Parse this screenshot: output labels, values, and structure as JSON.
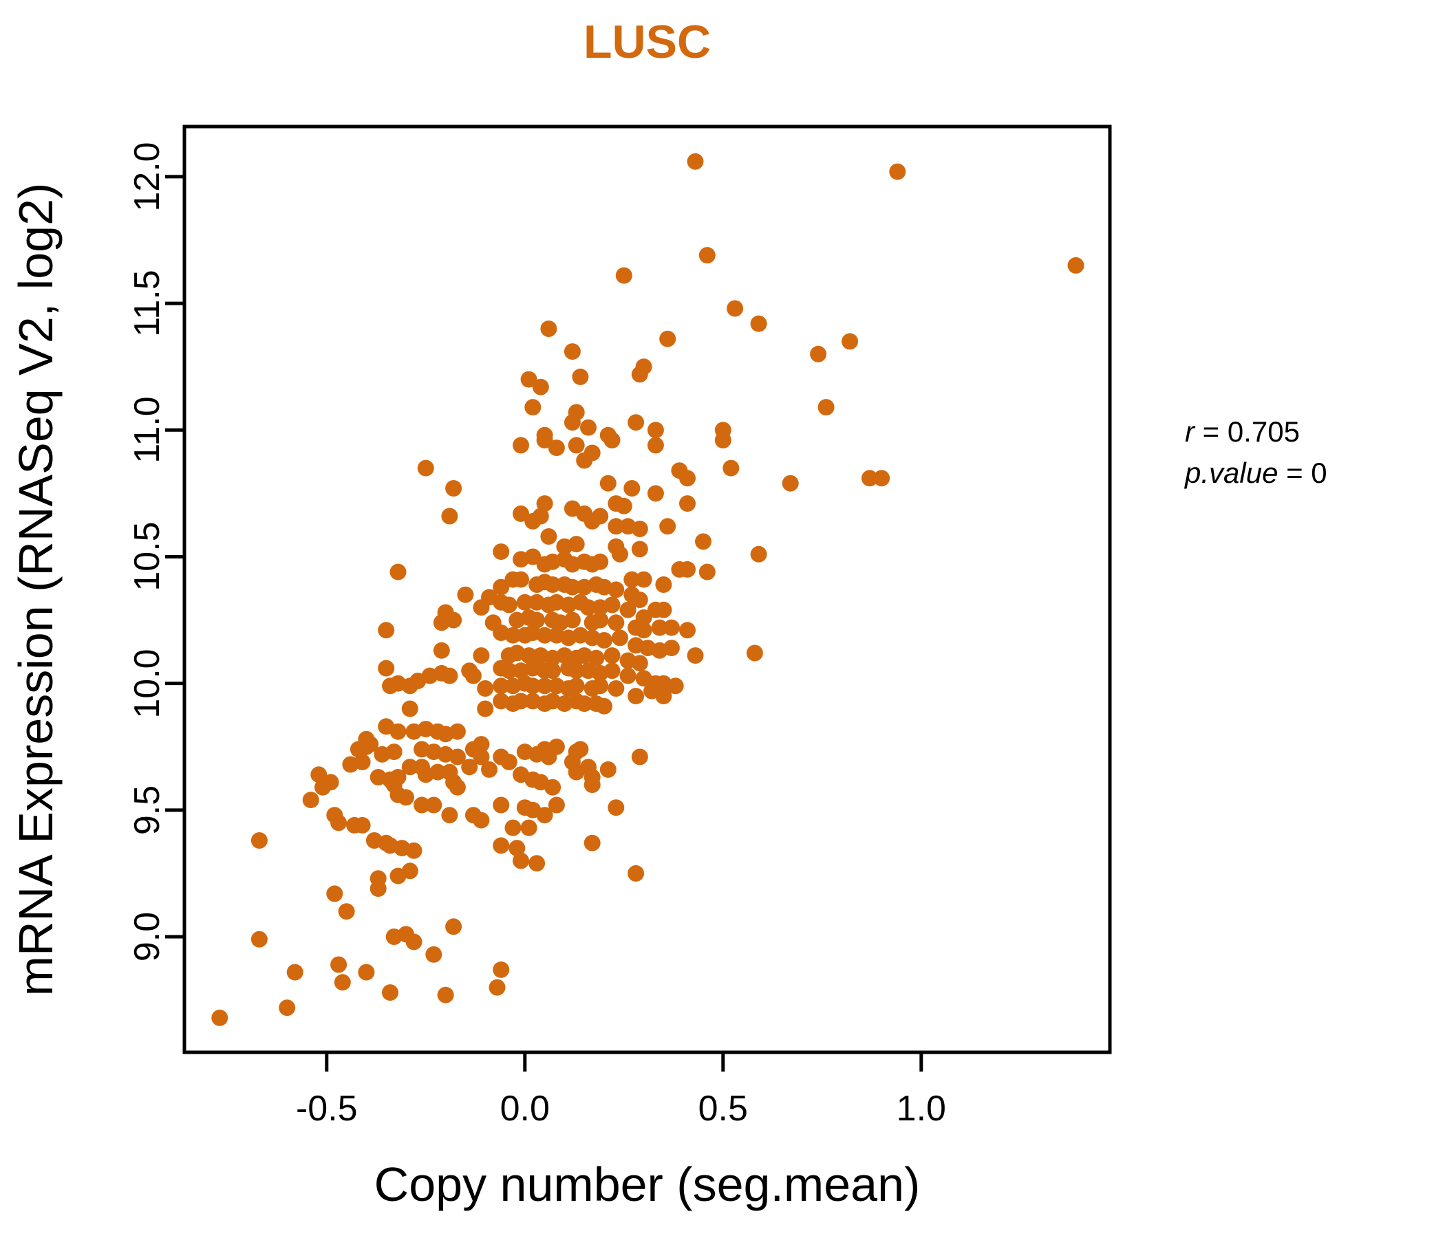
{
  "title": "LUSC",
  "annotation": {
    "line1_var": "r",
    "line1_rest": " = 0.705",
    "line2_var": "p.value",
    "line2_rest": " = 0"
  },
  "chart_data": {
    "type": "scatter",
    "title": "LUSC",
    "title_color": "#D2690E",
    "point_color": "#D2690E",
    "xlabel": "Copy number (seg.mean)",
    "ylabel": "mRNA Expression (RNASeq V2, log2)",
    "x_ticks": [
      "-0.5",
      "0.0",
      "0.5",
      "1.0"
    ],
    "y_ticks": [
      "9.0",
      "9.5",
      "10.0",
      "10.5",
      "11.0",
      "11.5",
      "12.0"
    ],
    "xlim": [
      -0.859,
      1.476
    ],
    "ylim": [
      8.544,
      12.198
    ],
    "legend": "none",
    "grid": false,
    "stats": {
      "r": 0.705,
      "p_value": 0
    },
    "points": [
      [
        0.43,
        12.06
      ],
      [
        0.94,
        12.02
      ],
      [
        0.46,
        11.69
      ],
      [
        1.39,
        11.65
      ],
      [
        0.25,
        11.61
      ],
      [
        0.53,
        11.48
      ],
      [
        0.59,
        11.42
      ],
      [
        0.06,
        11.4
      ],
      [
        0.36,
        11.36
      ],
      [
        0.82,
        11.35
      ],
      [
        0.74,
        11.3
      ],
      [
        0.12,
        11.31
      ],
      [
        0.3,
        11.25
      ],
      [
        0.29,
        11.22
      ],
      [
        0.14,
        11.21
      ],
      [
        0.01,
        11.2
      ],
      [
        0.04,
        11.17
      ],
      [
        0.76,
        11.09
      ],
      [
        0.02,
        11.09
      ],
      [
        0.13,
        11.07
      ],
      [
        0.12,
        11.03
      ],
      [
        0.28,
        11.03
      ],
      [
        0.16,
        11.01
      ],
      [
        0.33,
        11.0
      ],
      [
        0.5,
        11.0
      ],
      [
        0.21,
        10.98
      ],
      [
        0.05,
        10.98
      ],
      [
        -0.01,
        10.94
      ],
      [
        0.05,
        10.96
      ],
      [
        0.08,
        10.93
      ],
      [
        0.13,
        10.94
      ],
      [
        0.17,
        10.91
      ],
      [
        0.15,
        10.88
      ],
      [
        0.22,
        10.96
      ],
      [
        0.33,
        10.94
      ],
      [
        0.5,
        10.96
      ],
      [
        0.39,
        10.84
      ],
      [
        0.41,
        10.81
      ],
      [
        0.52,
        10.85
      ],
      [
        0.67,
        10.79
      ],
      [
        0.87,
        10.81
      ],
      [
        0.9,
        10.81
      ],
      [
        -0.25,
        10.85
      ],
      [
        -0.18,
        10.77
      ],
      [
        0.21,
        10.79
      ],
      [
        0.27,
        10.77
      ],
      [
        0.33,
        10.75
      ],
      [
        0.41,
        10.71
      ],
      [
        0.23,
        10.71
      ],
      [
        0.25,
        10.7
      ],
      [
        0.05,
        10.71
      ],
      [
        -0.19,
        10.66
      ],
      [
        -0.01,
        10.67
      ],
      [
        0.02,
        10.64
      ],
      [
        0.04,
        10.66
      ],
      [
        0.12,
        10.69
      ],
      [
        0.15,
        10.67
      ],
      [
        0.17,
        10.64
      ],
      [
        0.19,
        10.66
      ],
      [
        0.23,
        10.62
      ],
      [
        0.26,
        10.62
      ],
      [
        0.29,
        10.61
      ],
      [
        0.36,
        10.62
      ],
      [
        0.45,
        10.56
      ],
      [
        0.59,
        10.51
      ],
      [
        0.06,
        10.58
      ],
      [
        0.1,
        10.54
      ],
      [
        0.13,
        10.55
      ],
      [
        0.23,
        10.54
      ],
      [
        0.24,
        10.51
      ],
      [
        0.29,
        10.53
      ],
      [
        -0.06,
        10.52
      ],
      [
        -0.01,
        10.49
      ],
      [
        0.02,
        10.5
      ],
      [
        -0.32,
        10.44
      ],
      [
        0.05,
        10.47
      ],
      [
        0.07,
        10.48
      ],
      [
        0.1,
        10.49
      ],
      [
        0.12,
        10.47
      ],
      [
        0.15,
        10.48
      ],
      [
        0.17,
        10.47
      ],
      [
        0.19,
        10.48
      ],
      [
        0.39,
        10.45
      ],
      [
        0.41,
        10.45
      ],
      [
        0.46,
        10.44
      ],
      [
        0.27,
        10.41
      ],
      [
        0.3,
        10.41
      ],
      [
        0.35,
        10.39
      ],
      [
        -0.03,
        10.41
      ],
      [
        -0.01,
        10.41
      ],
      [
        -0.06,
        10.38
      ],
      [
        0.03,
        10.39
      ],
      [
        0.05,
        10.4
      ],
      [
        0.07,
        10.39
      ],
      [
        0.1,
        10.39
      ],
      [
        0.12,
        10.38
      ],
      [
        0.15,
        10.38
      ],
      [
        0.18,
        10.39
      ],
      [
        0.2,
        10.38
      ],
      [
        0.23,
        10.37
      ],
      [
        -0.15,
        10.35
      ],
      [
        -0.09,
        10.34
      ],
      [
        0.27,
        10.35
      ],
      [
        0.29,
        10.33
      ],
      [
        -0.11,
        10.3
      ],
      [
        -0.06,
        10.32
      ],
      [
        -0.04,
        10.31
      ],
      [
        0.0,
        10.32
      ],
      [
        0.03,
        10.32
      ],
      [
        0.06,
        10.31
      ],
      [
        0.08,
        10.32
      ],
      [
        0.11,
        10.31
      ],
      [
        0.14,
        10.32
      ],
      [
        0.16,
        10.3
      ],
      [
        0.19,
        10.3
      ],
      [
        0.22,
        10.31
      ],
      [
        0.26,
        10.29
      ],
      [
        0.33,
        10.29
      ],
      [
        0.35,
        10.29
      ],
      [
        0.3,
        10.26
      ],
      [
        -0.2,
        10.28
      ],
      [
        -0.18,
        10.25
      ],
      [
        -0.21,
        10.24
      ],
      [
        -0.08,
        10.24
      ],
      [
        -0.35,
        10.21
      ],
      [
        -0.02,
        10.25
      ],
      [
        0.01,
        10.26
      ],
      [
        0.03,
        10.25
      ],
      [
        0.07,
        10.25
      ],
      [
        0.09,
        10.24
      ],
      [
        0.12,
        10.25
      ],
      [
        0.17,
        10.24
      ],
      [
        0.19,
        10.25
      ],
      [
        0.23,
        10.24
      ],
      [
        0.28,
        10.22
      ],
      [
        0.3,
        10.21
      ],
      [
        0.34,
        10.22
      ],
      [
        0.37,
        10.22
      ],
      [
        0.41,
        10.21
      ],
      [
        -0.06,
        10.2
      ],
      [
        -0.03,
        10.19
      ],
      [
        0.0,
        10.19
      ],
      [
        0.02,
        10.2
      ],
      [
        0.05,
        10.19
      ],
      [
        0.08,
        10.19
      ],
      [
        0.11,
        10.18
      ],
      [
        0.14,
        10.19
      ],
      [
        0.17,
        10.18
      ],
      [
        0.2,
        10.17
      ],
      [
        0.24,
        10.18
      ],
      [
        -0.21,
        10.13
      ],
      [
        0.28,
        10.15
      ],
      [
        0.31,
        10.14
      ],
      [
        0.34,
        10.13
      ],
      [
        0.37,
        10.14
      ],
      [
        0.43,
        10.11
      ],
      [
        0.58,
        10.12
      ],
      [
        -0.11,
        10.11
      ],
      [
        -0.04,
        10.11
      ],
      [
        -0.02,
        10.12
      ],
      [
        0.01,
        10.11
      ],
      [
        0.04,
        10.11
      ],
      [
        0.07,
        10.1
      ],
      [
        0.1,
        10.11
      ],
      [
        0.13,
        10.1
      ],
      [
        0.15,
        10.11
      ],
      [
        0.18,
        10.1
      ],
      [
        0.22,
        10.11
      ],
      [
        0.26,
        10.09
      ],
      [
        0.29,
        10.08
      ],
      [
        -0.35,
        10.06
      ],
      [
        -0.24,
        10.03
      ],
      [
        -0.21,
        10.04
      ],
      [
        -0.19,
        10.03
      ],
      [
        -0.14,
        10.05
      ],
      [
        -0.13,
        10.03
      ],
      [
        -0.06,
        10.06
      ],
      [
        -0.04,
        10.05
      ],
      [
        -0.01,
        10.05
      ],
      [
        0.02,
        10.06
      ],
      [
        0.05,
        10.05
      ],
      [
        0.07,
        10.05
      ],
      [
        0.11,
        10.06
      ],
      [
        0.13,
        10.05
      ],
      [
        0.16,
        10.05
      ],
      [
        0.19,
        10.04
      ],
      [
        0.22,
        10.05
      ],
      [
        0.26,
        10.03
      ],
      [
        0.3,
        10.02
      ],
      [
        0.33,
        10.0
      ],
      [
        0.35,
        10.0
      ],
      [
        -0.32,
        10.0
      ],
      [
        -0.29,
        9.99
      ],
      [
        -0.27,
        10.01
      ],
      [
        0.38,
        9.99
      ],
      [
        -0.34,
        9.99
      ],
      [
        -0.1,
        9.98
      ],
      [
        -0.06,
        9.99
      ],
      [
        -0.03,
        9.99
      ],
      [
        0.0,
        10.0
      ],
      [
        0.02,
        9.99
      ],
      [
        0.05,
        9.99
      ],
      [
        0.08,
        9.99
      ],
      [
        0.11,
        9.98
      ],
      [
        0.13,
        9.99
      ],
      [
        0.17,
        9.98
      ],
      [
        0.19,
        9.99
      ],
      [
        0.23,
        9.98
      ],
      [
        0.28,
        9.95
      ],
      [
        0.32,
        9.97
      ],
      [
        0.35,
        9.95
      ],
      [
        -0.29,
        9.9
      ],
      [
        -0.1,
        9.9
      ],
      [
        -0.06,
        9.93
      ],
      [
        -0.03,
        9.92
      ],
      [
        -0.01,
        9.93
      ],
      [
        0.02,
        9.93
      ],
      [
        0.05,
        9.92
      ],
      [
        0.07,
        9.93
      ],
      [
        0.1,
        9.92
      ],
      [
        0.13,
        9.93
      ],
      [
        0.15,
        9.92
      ],
      [
        0.18,
        9.92
      ],
      [
        0.2,
        9.91
      ],
      [
        -0.35,
        9.83
      ],
      [
        -0.32,
        9.81
      ],
      [
        -0.28,
        9.81
      ],
      [
        -0.25,
        9.82
      ],
      [
        -0.22,
        9.81
      ],
      [
        -0.2,
        9.8
      ],
      [
        -0.17,
        9.81
      ],
      [
        -0.4,
        9.78
      ],
      [
        -0.39,
        9.76
      ],
      [
        -0.11,
        9.76
      ],
      [
        -0.42,
        9.74
      ],
      [
        -0.4,
        9.75
      ],
      [
        -0.36,
        9.72
      ],
      [
        -0.33,
        9.73
      ],
      [
        -0.26,
        9.74
      ],
      [
        -0.23,
        9.73
      ],
      [
        -0.2,
        9.72
      ],
      [
        -0.17,
        9.71
      ],
      [
        -0.13,
        9.74
      ],
      [
        -0.11,
        9.71
      ],
      [
        -0.44,
        9.68
      ],
      [
        -0.41,
        9.69
      ],
      [
        -0.06,
        9.71
      ],
      [
        -0.04,
        9.69
      ],
      [
        0.0,
        9.73
      ],
      [
        0.03,
        9.72
      ],
      [
        0.06,
        9.71
      ],
      [
        0.05,
        9.74
      ],
      [
        0.08,
        9.75
      ],
      [
        0.13,
        9.73
      ],
      [
        0.14,
        9.74
      ],
      [
        0.29,
        9.71
      ],
      [
        0.12,
        9.69
      ],
      [
        0.16,
        9.67
      ],
      [
        -0.52,
        9.64
      ],
      [
        -0.49,
        9.61
      ],
      [
        -0.51,
        9.59
      ],
      [
        -0.37,
        9.63
      ],
      [
        -0.34,
        9.62
      ],
      [
        -0.32,
        9.63
      ],
      [
        -0.29,
        9.67
      ],
      [
        -0.26,
        9.67
      ],
      [
        -0.33,
        9.6
      ],
      [
        -0.32,
        9.56
      ],
      [
        -0.3,
        9.55
      ],
      [
        -0.25,
        9.64
      ],
      [
        -0.22,
        9.65
      ],
      [
        -0.19,
        9.65
      ],
      [
        -0.18,
        9.61
      ],
      [
        -0.17,
        9.59
      ],
      [
        -0.14,
        9.67
      ],
      [
        -0.09,
        9.66
      ],
      [
        -0.01,
        9.64
      ],
      [
        0.02,
        9.62
      ],
      [
        0.04,
        9.61
      ],
      [
        0.07,
        9.59
      ],
      [
        0.13,
        9.65
      ],
      [
        0.21,
        9.66
      ],
      [
        0.17,
        9.63
      ],
      [
        0.17,
        9.6
      ],
      [
        -0.54,
        9.54
      ],
      [
        -0.26,
        9.52
      ],
      [
        -0.23,
        9.52
      ],
      [
        -0.13,
        9.48
      ],
      [
        -0.11,
        9.46
      ],
      [
        -0.19,
        9.48
      ],
      [
        -0.48,
        9.48
      ],
      [
        -0.47,
        9.45
      ],
      [
        -0.43,
        9.44
      ],
      [
        -0.41,
        9.44
      ],
      [
        -0.06,
        9.52
      ],
      [
        0.0,
        9.51
      ],
      [
        0.02,
        9.5
      ],
      [
        0.05,
        9.48
      ],
      [
        0.08,
        9.52
      ],
      [
        0.23,
        9.51
      ],
      [
        -0.03,
        9.43
      ],
      [
        0.01,
        9.43
      ],
      [
        -0.38,
        9.38
      ],
      [
        -0.67,
        9.38
      ],
      [
        -0.35,
        9.37
      ],
      [
        -0.34,
        9.36
      ],
      [
        -0.31,
        9.35
      ],
      [
        -0.28,
        9.34
      ],
      [
        -0.06,
        9.36
      ],
      [
        -0.02,
        9.35
      ],
      [
        -0.01,
        9.3
      ],
      [
        0.03,
        9.29
      ],
      [
        0.17,
        9.37
      ],
      [
        -0.32,
        9.24
      ],
      [
        -0.29,
        9.26
      ],
      [
        -0.37,
        9.23
      ],
      [
        0.28,
        9.25
      ],
      [
        -0.37,
        9.19
      ],
      [
        -0.48,
        9.17
      ],
      [
        -0.45,
        9.1
      ],
      [
        -0.33,
        9.0
      ],
      [
        -0.3,
        9.01
      ],
      [
        -0.18,
        9.04
      ],
      [
        -0.67,
        8.99
      ],
      [
        -0.28,
        8.98
      ],
      [
        -0.23,
        8.93
      ],
      [
        -0.58,
        8.86
      ],
      [
        -0.47,
        8.89
      ],
      [
        -0.46,
        8.82
      ],
      [
        -0.4,
        8.86
      ],
      [
        -0.34,
        8.78
      ],
      [
        -0.2,
        8.77
      ],
      [
        -0.6,
        8.72
      ],
      [
        -0.77,
        8.68
      ],
      [
        -0.06,
        8.87
      ],
      [
        -0.07,
        8.8
      ]
    ]
  }
}
